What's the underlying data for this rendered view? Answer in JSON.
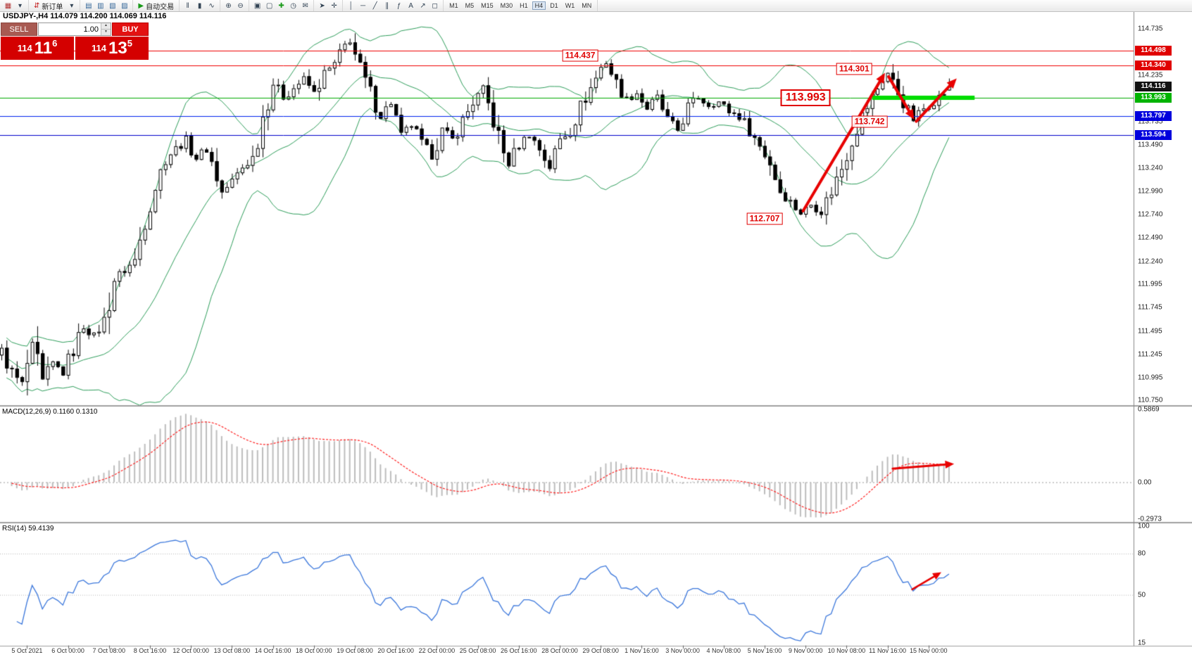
{
  "toolbar": {
    "active_timeframe": "H4",
    "groups": [
      {
        "items": [
          {
            "type": "icon",
            "name": "new-chart-icon",
            "glyph": "▦",
            "color": "#b03030"
          },
          {
            "type": "icon",
            "name": "new-chart-dropdown-icon",
            "glyph": "▾"
          }
        ]
      },
      {
        "items": [
          {
            "type": "button",
            "name": "new-order-button",
            "glyph": "⇵",
            "glyph_color": "#c42222",
            "label": "新订单"
          },
          {
            "type": "icon",
            "name": "new-order-dropdown-icon",
            "glyph": "▾"
          }
        ]
      },
      {
        "items": [
          {
            "type": "icon",
            "name": "market-watch-icon",
            "glyph": "▤",
            "color": "#336699"
          },
          {
            "type": "icon",
            "name": "data-window-icon",
            "glyph": "▥",
            "color": "#336699"
          },
          {
            "type": "icon",
            "name": "navigator-icon",
            "glyph": "▧",
            "color": "#336699"
          },
          {
            "type": "icon",
            "name": "terminal-icon",
            "glyph": "▨",
            "color": "#336699"
          }
        ]
      },
      {
        "items": [
          {
            "type": "button",
            "name": "auto-trading-button",
            "glyph": "▶",
            "glyph_color": "#1a9a1a",
            "label": "自动交易"
          }
        ]
      },
      {
        "items": [
          {
            "type": "icon",
            "name": "bar-chart-icon",
            "glyph": "‖"
          },
          {
            "type": "icon",
            "name": "candlestick-chart-icon",
            "glyph": "▮"
          },
          {
            "type": "icon",
            "name": "line-chart-icon",
            "glyph": "∿"
          }
        ]
      },
      {
        "items": [
          {
            "type": "icon",
            "name": "zoom-in-icon",
            "glyph": "⊕"
          },
          {
            "type": "icon",
            "name": "zoom-out-icon",
            "glyph": "⊖"
          }
        ]
      },
      {
        "items": [
          {
            "type": "icon",
            "name": "tile-windows-icon",
            "glyph": "▣"
          },
          {
            "type": "icon",
            "name": "cascade-windows-icon",
            "glyph": "▢"
          },
          {
            "type": "icon",
            "name": "add-indicator-icon",
            "glyph": "✚",
            "color": "#1a9a1a"
          },
          {
            "type": "icon",
            "name": "periods-icon",
            "glyph": "◷"
          },
          {
            "type": "icon",
            "name": "mail-icon",
            "glyph": "✉"
          }
        ]
      },
      {
        "items": [
          {
            "type": "icon",
            "name": "cursor-icon",
            "glyph": "➤"
          },
          {
            "type": "icon",
            "name": "crosshair-icon",
            "glyph": "✛"
          }
        ]
      },
      {
        "items": [
          {
            "type": "icon",
            "name": "vertical-line-icon",
            "glyph": "│"
          },
          {
            "type": "icon",
            "name": "horizontal-line-icon",
            "glyph": "─"
          },
          {
            "type": "icon",
            "name": "trendline-icon",
            "glyph": "╱"
          },
          {
            "type": "icon",
            "name": "channel-icon",
            "glyph": "∥"
          },
          {
            "type": "icon",
            "name": "fibonacci-icon",
            "glyph": "ƒ"
          },
          {
            "type": "icon",
            "name": "text-label-icon",
            "glyph": "A"
          },
          {
            "type": "icon",
            "name": "arrows-tool-icon",
            "glyph": "↗"
          },
          {
            "type": "icon",
            "name": "shapes-icon",
            "glyph": "◻"
          }
        ]
      },
      {
        "items": [
          {
            "type": "tf",
            "name": "timeframe-m1-button",
            "label": "M1"
          },
          {
            "type": "tf",
            "name": "timeframe-m5-button",
            "label": "M5"
          },
          {
            "type": "tf",
            "name": "timeframe-m15-button",
            "label": "M15"
          },
          {
            "type": "tf",
            "name": "timeframe-m30-button",
            "label": "M30"
          },
          {
            "type": "tf",
            "name": "timeframe-h1-button",
            "label": "H1"
          },
          {
            "type": "tf",
            "name": "timeframe-h4-button",
            "label": "H4"
          },
          {
            "type": "tf",
            "name": "timeframe-d1-button",
            "label": "D1"
          },
          {
            "type": "tf",
            "name": "timeframe-w1-button",
            "label": "W1"
          },
          {
            "type": "tf",
            "name": "timeframe-mn-button",
            "label": "MN"
          }
        ]
      }
    ]
  },
  "icons": {
    "spin_up": "▲",
    "spin_down": "▼"
  },
  "trade": {
    "sell_label": "SELL",
    "buy_label": "BUY",
    "volume": "1.00",
    "sell_price": {
      "prefix": "114",
      "big": "11",
      "sup": "6"
    },
    "buy_price": {
      "prefix": "114",
      "big": "13",
      "sup": "5"
    }
  },
  "chart_data": {
    "type": "candlestick",
    "symbol": "USDJPY-",
    "timeframe": "H4",
    "ohlc_header": "USDJPY-,H4  114.079 114.200 114.069 114.116",
    "open": 114.079,
    "high": 114.2,
    "low": 114.069,
    "close": 114.116,
    "bars": 186,
    "price_axis": {
      "min": 110.7,
      "max": 114.92,
      "labels": [
        "114.735",
        "114.485",
        "114.235",
        "113.985",
        "113.735",
        "113.490",
        "113.240",
        "112.990",
        "112.740",
        "112.490",
        "112.240",
        "111.995",
        "111.745",
        "111.495",
        "111.245",
        "110.995",
        "110.750"
      ]
    },
    "badges": [
      {
        "text": "114.498",
        "price": 114.498,
        "color": "#e00000"
      },
      {
        "text": "114.340",
        "price": 114.34,
        "color": "#e00000"
      },
      {
        "text": "114.116",
        "price": 114.116,
        "color": "#111111"
      },
      {
        "text": "113.993",
        "price": 113.993,
        "color": "#00b300"
      },
      {
        "text": "113.797",
        "price": 113.797,
        "color": "#0000dd"
      },
      {
        "text": "113.594",
        "price": 113.594,
        "color": "#0000dd"
      }
    ],
    "hlines": [
      {
        "price": 114.498,
        "color": "#f00000"
      },
      {
        "price": 114.34,
        "color": "#f00000"
      },
      {
        "price": 113.993,
        "color": "#00aa00"
      },
      {
        "price": 113.797,
        "color": "#0022ee"
      },
      {
        "price": 113.594,
        "color": "#0000cc"
      }
    ],
    "green_segment": {
      "price": 113.993,
      "from_bar": 170,
      "to_bar": 190,
      "color": "#00dd00",
      "width": 6
    },
    "annotations": [
      {
        "text": "114.437",
        "bar": 113,
        "price": 114.445,
        "size": "normal"
      },
      {
        "text": "114.301",
        "bar": 166.5,
        "price": 114.305,
        "size": "normal"
      },
      {
        "text": "113.993",
        "bar": 157,
        "price": 113.99,
        "size": "big"
      },
      {
        "text": "113.742",
        "bar": 169.5,
        "price": 113.735,
        "size": "normal"
      },
      {
        "text": "112.707",
        "bar": 149,
        "price": 112.7,
        "size": "normal"
      }
    ],
    "arrows": [
      {
        "panel": "main",
        "from": [
          156.5,
          112.78
        ],
        "to": [
          172.5,
          114.26
        ],
        "width": 4
      },
      {
        "panel": "main",
        "from": [
          173.2,
          114.22
        ],
        "to": [
          178.2,
          113.76
        ],
        "width": 4
      },
      {
        "panel": "main",
        "from": [
          178.6,
          113.74
        ],
        "to": [
          186.5,
          114.2
        ],
        "width": 4
      },
      {
        "panel": "macd",
        "from": [
          174,
          0.11
        ],
        "to": [
          186,
          0.148
        ],
        "width": 3
      },
      {
        "panel": "rsi",
        "from": [
          177.8,
          54
        ],
        "to": [
          183.5,
          66.5
        ],
        "width": 2.5
      }
    ],
    "arrow_color": "#e80000",
    "candle_colors": {
      "up_fill": "#ffffff",
      "down_fill": "#000000",
      "outline": "#000000",
      "wick": "#000000"
    },
    "bollinger": {
      "period": 20,
      "deviation": 2,
      "color": "#2e9e5b"
    },
    "macd": {
      "label": "MACD(12,26,9) 0.1160 0.1310",
      "main": 0.116,
      "signal": 0.131,
      "axis_labels": [
        "0.5869",
        "0.00",
        "-0.2973"
      ],
      "max": 0.5869,
      "min": -0.2973,
      "hist_color": "#bdbdbd",
      "signal_color": "#ff2020"
    },
    "rsi": {
      "label": "RSI(14) 59.4139",
      "period": 14,
      "value": 59.4139,
      "axis_labels": [
        "100",
        "80",
        "50",
        "15"
      ],
      "max": 100,
      "min": 15,
      "levels": [
        80,
        50
      ],
      "color": "#3c78dc"
    },
    "time_labels": [
      "5 Oct 2021",
      "6 Oct 00:00",
      "7 Oct 08:00",
      "8 Oct 16:00",
      "12 Oct 00:00",
      "13 Oct 08:00",
      "14 Oct 16:00",
      "18 Oct 00:00",
      "19 Oct 08:00",
      "20 Oct 16:00",
      "22 Oct 00:00",
      "25 Oct 08:00",
      "26 Oct 16:00",
      "28 Oct 00:00",
      "29 Oct 08:00",
      "1 Nov 16:00",
      "3 Nov 00:00",
      "4 Nov 08:00",
      "5 Nov 16:00",
      "9 Nov 00:00",
      "10 Nov 08:00",
      "11 Nov 16:00",
      "15 Nov 00:00"
    ],
    "time_label_start_bar": 5,
    "time_label_step": 8,
    "waypoints": [
      [
        0,
        111.28
      ],
      [
        2,
        111.05
      ],
      [
        4,
        110.92
      ],
      [
        6,
        111.35
      ],
      [
        8,
        110.95
      ],
      [
        10,
        111.15
      ],
      [
        12,
        111.05
      ],
      [
        14,
        111.3
      ],
      [
        16,
        111.55
      ],
      [
        18,
        111.45
      ],
      [
        20,
        111.6
      ],
      [
        22,
        112.05
      ],
      [
        24,
        112.15
      ],
      [
        26,
        112.25
      ],
      [
        28,
        112.7
      ],
      [
        30,
        113.05
      ],
      [
        32,
        113.35
      ],
      [
        34,
        113.45
      ],
      [
        36,
        113.55
      ],
      [
        38,
        113.35
      ],
      [
        40,
        113.45
      ],
      [
        42,
        113.15
      ],
      [
        43,
        112.98
      ],
      [
        45,
        113.1
      ],
      [
        47,
        113.25
      ],
      [
        49,
        113.35
      ],
      [
        51,
        113.8
      ],
      [
        53,
        114.15
      ],
      [
        55,
        114.0
      ],
      [
        57,
        114.1
      ],
      [
        59,
        114.2
      ],
      [
        61,
        114.05
      ],
      [
        63,
        114.25
      ],
      [
        65,
        114.35
      ],
      [
        67,
        114.55
      ],
      [
        68,
        114.62
      ],
      [
        70,
        114.3
      ],
      [
        72,
        114.05
      ],
      [
        74,
        113.8
      ],
      [
        76,
        113.95
      ],
      [
        78,
        113.58
      ],
      [
        80,
        113.7
      ],
      [
        82,
        113.5
      ],
      [
        84,
        113.38
      ],
      [
        86,
        113.65
      ],
      [
        88,
        113.55
      ],
      [
        90,
        113.75
      ],
      [
        92,
        113.95
      ],
      [
        94,
        114.08
      ],
      [
        96,
        113.75
      ],
      [
        98,
        113.4
      ],
      [
        99,
        113.28
      ],
      [
        101,
        113.5
      ],
      [
        103,
        113.6
      ],
      [
        105,
        113.45
      ],
      [
        107,
        113.25
      ],
      [
        109,
        113.55
      ],
      [
        111,
        113.65
      ],
      [
        113,
        113.9
      ],
      [
        115,
        114.1
      ],
      [
        117,
        114.32
      ],
      [
        118,
        114.38
      ],
      [
        120,
        114.15
      ],
      [
        122,
        113.98
      ],
      [
        124,
        114.05
      ],
      [
        126,
        113.88
      ],
      [
        128,
        114.0
      ],
      [
        130,
        113.75
      ],
      [
        132,
        113.65
      ],
      [
        134,
        113.9
      ],
      [
        136,
        114.0
      ],
      [
        138,
        113.92
      ],
      [
        140,
        113.95
      ],
      [
        142,
        113.85
      ],
      [
        144,
        113.8
      ],
      [
        146,
        113.65
      ],
      [
        148,
        113.48
      ],
      [
        150,
        113.3
      ],
      [
        152,
        113.0
      ],
      [
        154,
        112.88
      ],
      [
        156,
        112.76
      ],
      [
        158,
        112.85
      ],
      [
        160,
        112.78
      ],
      [
        162,
        113.0
      ],
      [
        164,
        113.25
      ],
      [
        166,
        113.55
      ],
      [
        168,
        113.8
      ],
      [
        170,
        114.0
      ],
      [
        172,
        114.2
      ],
      [
        173,
        114.26
      ],
      [
        175,
        114.05
      ],
      [
        177,
        113.85
      ],
      [
        178,
        113.76
      ],
      [
        180,
        113.88
      ],
      [
        182,
        113.96
      ],
      [
        184,
        114.05
      ],
      [
        185,
        114.12
      ]
    ]
  }
}
